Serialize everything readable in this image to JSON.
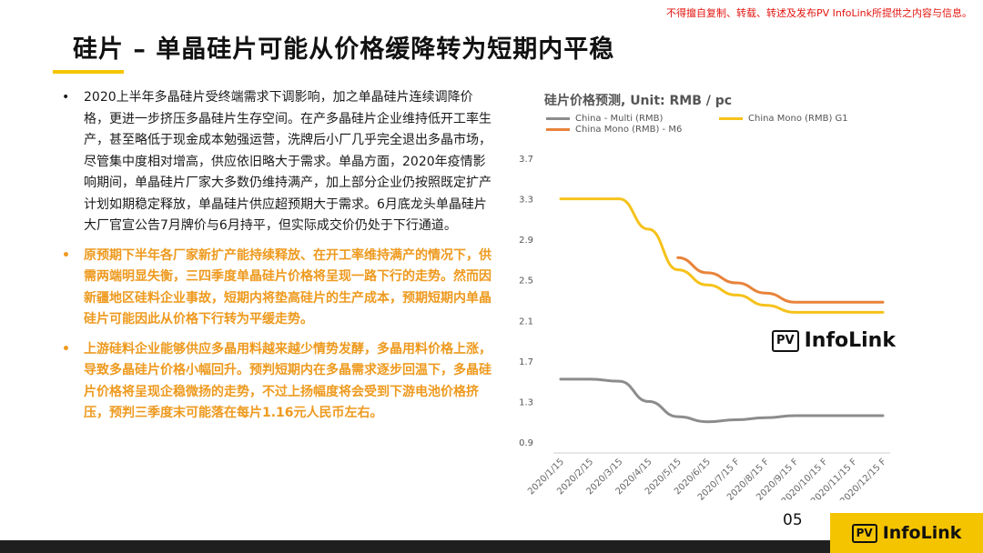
{
  "disclaimer": "不得擅自复制、转载、转述及发布PV InfoLink所提供之内容与信息。",
  "title": "硅片 – 单晶硅片可能从价格缓降转为短期内平稳",
  "bullets": [
    {
      "marker": "•",
      "text": "2020上半年多晶硅片受终端需求下调影响，加之单晶硅片连续调降价格，更进一步挤压多晶硅片生存空间。在产多晶硅片企业维持低开工率生产，甚至略低于现金成本勉强运营，洗牌后小厂几乎完全退出多晶市场，尽管集中度相对增高，供应依旧略大于需求。单晶方面，2020年疫情影响期间，单晶硅片厂家大多数仍维持满产，加上部分企业仍按照既定扩产计划如期稳定释放，单晶硅片供应超预期大于需求。6月底龙头单晶硅片大厂官宣公告7月牌价与6月持平，但实际成交价仍处于下行通道。"
    },
    {
      "marker": "•",
      "text": "原预期下半年各厂家新扩产能持续释放、在开工率维持满产的情况下，供需两端明显失衡，三四季度单晶硅片价格将呈现一路下行的走势。然而因新疆地区硅料企业事故，短期内将垫高硅片的生产成本，预期短期内单晶硅片可能因此从价格下行转为平缓走势。"
    },
    {
      "marker": "•",
      "text": "上游硅料企业能够供应多晶用料越来越少情势发酵，多晶用料价格上涨，导致多晶硅片价格小幅回升。预判短期内在多晶需求逐步回温下，多晶硅片价格将呈现企稳微扬的走势，不过上扬幅度将会受到下游电池价格挤压，预判三季度末可能落在每片1.16元人民币左右。"
    }
  ],
  "logo": {
    "pv": "PV",
    "name": "InfoLink"
  },
  "page_number": "05",
  "chart_data": {
    "type": "line",
    "title": "硅片价格预测, Unit: RMB / pc",
    "categories": [
      "2020/1/15",
      "2020/2/15",
      "2020/3/15",
      "2020/4/15",
      "2020/5/15",
      "2020/6/15",
      "2020/7/15 F",
      "2020/8/15 F",
      "2020/9/15 F",
      "2020/10/15 F",
      "2020/11/15 F",
      "2020/12/15 F"
    ],
    "yticks": [
      "0.9",
      "1.3",
      "1.7",
      "2.1",
      "2.5",
      "2.9",
      "3.3",
      "3.7"
    ],
    "ylim": [
      0.9,
      3.7
    ],
    "grid": false,
    "legend_position": "top",
    "series": [
      {
        "name": "China - Multi (RMB)",
        "color": "#8c8c8c",
        "values": [
          1.52,
          1.52,
          1.5,
          1.3,
          1.15,
          1.1,
          1.12,
          1.14,
          1.16,
          1.16,
          1.16,
          1.16
        ]
      },
      {
        "name": "China Mono (RMB) G1",
        "color": "#f6c21b",
        "values": [
          3.3,
          3.3,
          3.3,
          3.0,
          2.6,
          2.45,
          2.35,
          2.25,
          2.18,
          2.18,
          2.18,
          2.18
        ]
      },
      {
        "name": "China Mono (RMB) - M6",
        "color": "#e8833a",
        "values": [
          null,
          null,
          null,
          null,
          2.72,
          2.57,
          2.47,
          2.37,
          2.28,
          2.28,
          2.28,
          2.28
        ]
      }
    ]
  }
}
